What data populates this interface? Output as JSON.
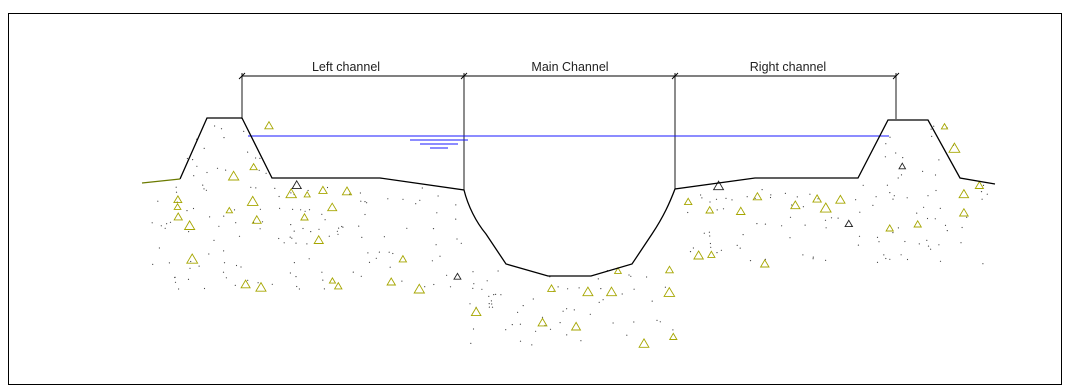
{
  "diagram": {
    "labels": {
      "left_channel": "Left channel",
      "main_channel": "Main Channel",
      "right_channel": "Right channel"
    },
    "colors": {
      "outline": "#000000",
      "water_surface": "#1a1aff",
      "gravel": "#a6a600",
      "ground_line": "#6b7a00"
    }
  }
}
